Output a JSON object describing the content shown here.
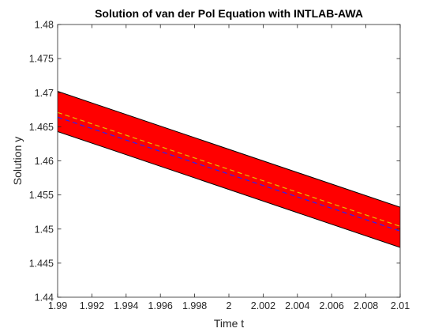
{
  "chart_data": {
    "type": "area",
    "title": "Solution of van der Pol Equation with INTLAB-AWA",
    "xlabel": "Time t",
    "ylabel": "Solution y",
    "xlim": [
      1.99,
      2.01
    ],
    "ylim": [
      1.44,
      1.48
    ],
    "grid": false,
    "x_ticks": [
      1.99,
      1.992,
      1.994,
      1.996,
      1.998,
      2,
      2.002,
      2.004,
      2.006,
      2.008,
      2.01
    ],
    "x_tick_labels": [
      "1.99",
      "1.992",
      "1.994",
      "1.996",
      "1.998",
      "2",
      "2.002",
      "2.004",
      "2.006",
      "2.008",
      "2.01"
    ],
    "y_ticks": [
      1.44,
      1.445,
      1.45,
      1.455,
      1.46,
      1.465,
      1.47,
      1.475,
      1.48
    ],
    "y_tick_labels": [
      "1.44",
      "1.445",
      "1.45",
      "1.455",
      "1.46",
      "1.465",
      "1.47",
      "1.475",
      "1.48"
    ],
    "band": {
      "x": [
        1.99,
        2.01
      ],
      "upper": [
        1.4702,
        1.4532
      ],
      "lower": [
        1.4643,
        1.4473
      ],
      "fill_color": "#ff0000",
      "edge_color": "#000000"
    },
    "series": [
      {
        "x": [
          1.99,
          2.01
        ],
        "values": [
          1.4671,
          1.4504
        ],
        "color": "#e0c000",
        "style": "dashed"
      },
      {
        "x": [
          1.99,
          2.01
        ],
        "values": [
          1.4664,
          1.4497
        ],
        "color": "#2222ff",
        "style": "dashed"
      }
    ]
  }
}
